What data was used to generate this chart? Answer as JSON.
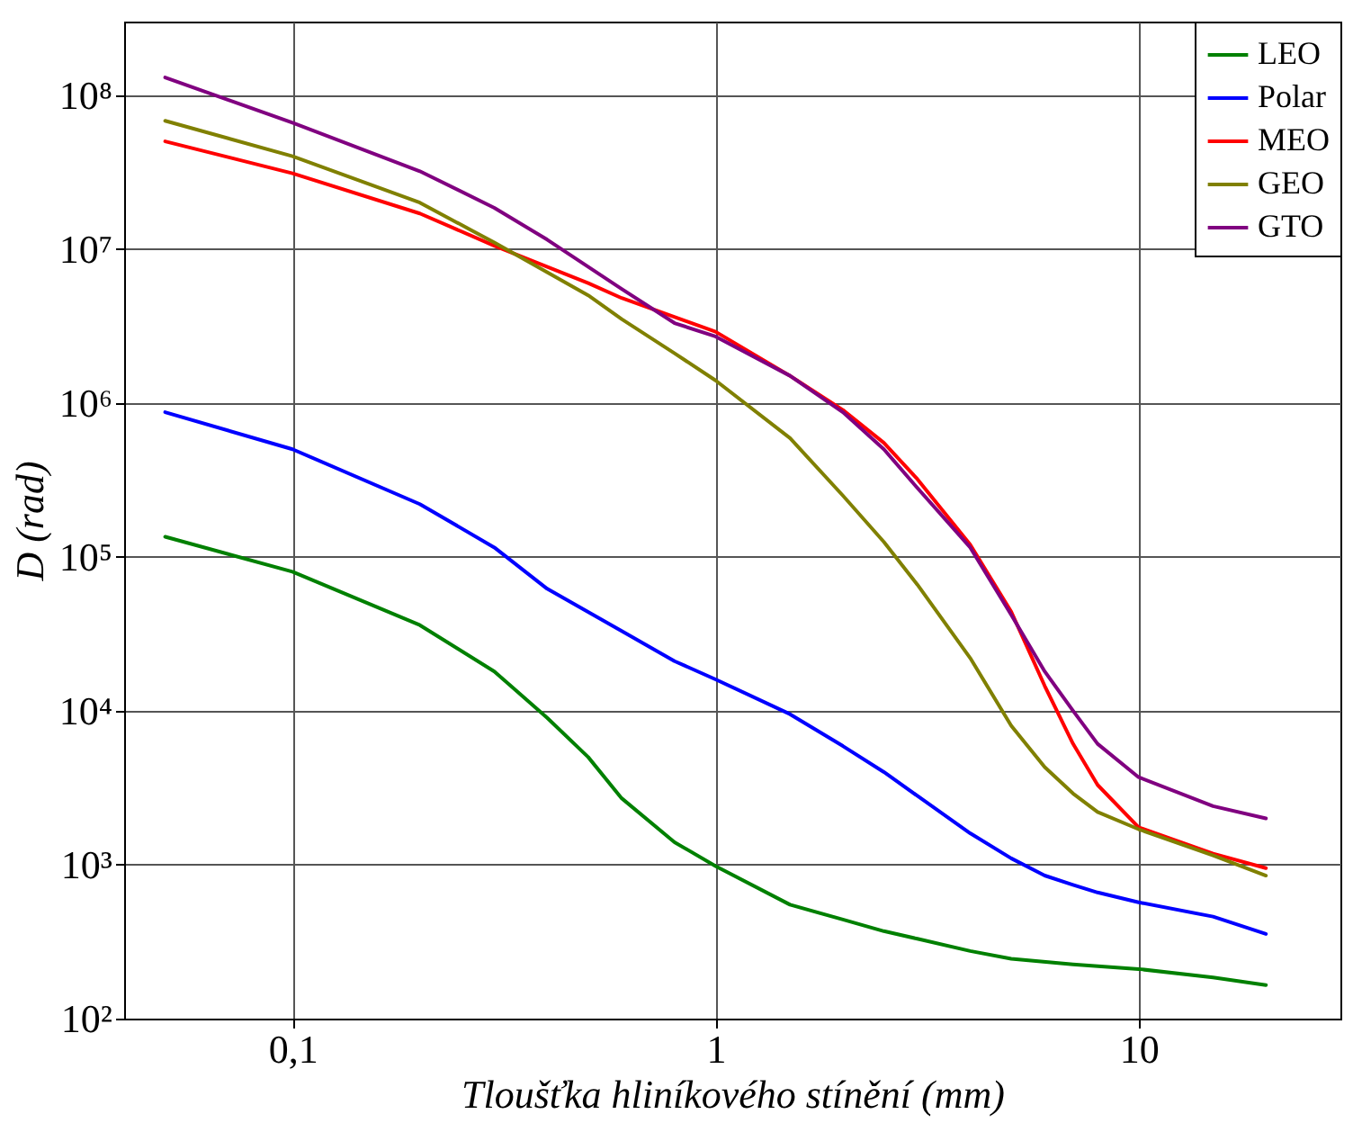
{
  "chart_data": {
    "type": "line",
    "xlabel": "Tloušťka hliníkového stínění (mm)",
    "ylabel": "D (rad)",
    "log": "xy",
    "grid": true,
    "legend": "top right",
    "xlim": [
      0.04,
      30
    ],
    "ylim": [
      100,
      300000000
    ],
    "xticks": [
      {
        "value": 0.1,
        "label": "0,1"
      },
      1,
      10
    ],
    "yticks": [
      {
        "value": 100,
        "label": "10²"
      },
      {
        "value": 1000,
        "label": "10³"
      },
      {
        "value": 10000,
        "label": "10⁴"
      },
      {
        "value": 100000,
        "label": "10⁵"
      },
      {
        "value": 1000000,
        "label": "10⁶"
      },
      {
        "value": 10000000,
        "label": "10⁷"
      },
      {
        "value": 100000000,
        "label": "10⁸"
      }
    ],
    "series": [
      {
        "name": "LEO",
        "color": "#008000",
        "x": [
          0.05,
          0.1,
          0.2,
          0.3,
          0.4,
          0.5,
          0.6,
          0.8,
          1,
          1.5,
          2,
          2.5,
          3,
          4,
          5,
          7,
          10,
          15,
          20
        ],
        "values": [
          135000,
          80000,
          36000,
          18000,
          9000,
          5000,
          2700,
          1400,
          980,
          550,
          440,
          370,
          330,
          275,
          245,
          225,
          210,
          185,
          165
        ]
      },
      {
        "name": "Polar",
        "color": "#0000ff",
        "x": [
          0.05,
          0.1,
          0.2,
          0.3,
          0.4,
          0.6,
          0.8,
          1,
          1.5,
          2,
          2.5,
          3,
          4,
          5,
          6,
          7,
          8,
          10,
          15,
          20
        ],
        "values": [
          870000,
          500000,
          220000,
          115000,
          62000,
          33000,
          21000,
          16000,
          9500,
          5900,
          4000,
          2800,
          1600,
          1100,
          850,
          740,
          660,
          570,
          460,
          355
        ]
      },
      {
        "name": "MEO",
        "color": "#ff0000",
        "x": [
          0.05,
          0.1,
          0.2,
          0.3,
          0.5,
          0.6,
          1,
          1.5,
          2,
          2.5,
          3,
          4,
          5,
          6,
          7,
          8,
          10,
          15,
          20
        ],
        "values": [
          50000000,
          31000000,
          17000000,
          10500000,
          6000000,
          4800000,
          2900000,
          1500000,
          900000,
          550000,
          320000,
          120000,
          44000,
          14500,
          6100,
          3300,
          1750,
          1180,
          950
        ]
      },
      {
        "name": "GEO",
        "color": "#808000",
        "x": [
          0.05,
          0.1,
          0.2,
          0.3,
          0.5,
          0.6,
          0.8,
          1,
          1.5,
          2,
          2.5,
          3,
          4,
          5,
          6,
          7,
          8,
          10,
          15,
          20
        ],
        "values": [
          68000000,
          40000000,
          20000000,
          11000000,
          5000000,
          3500000,
          2100000,
          1400000,
          590000,
          250000,
          125000,
          66000,
          22000,
          8000,
          4300,
          2900,
          2200,
          1700,
          1150,
          850
        ]
      },
      {
        "name": "GTO",
        "color": "#800080",
        "x": [
          0.05,
          0.1,
          0.2,
          0.3,
          0.4,
          0.6,
          0.8,
          1,
          1.5,
          2,
          2.5,
          3,
          4,
          5,
          6,
          7,
          8,
          10,
          15,
          20
        ],
        "values": [
          130000000,
          66000000,
          32000000,
          18500000,
          11500000,
          5500000,
          3300000,
          2700000,
          1500000,
          870000,
          500000,
          280000,
          115000,
          42000,
          18000,
          10000,
          6100,
          3700,
          2400,
          2000
        ]
      }
    ]
  }
}
